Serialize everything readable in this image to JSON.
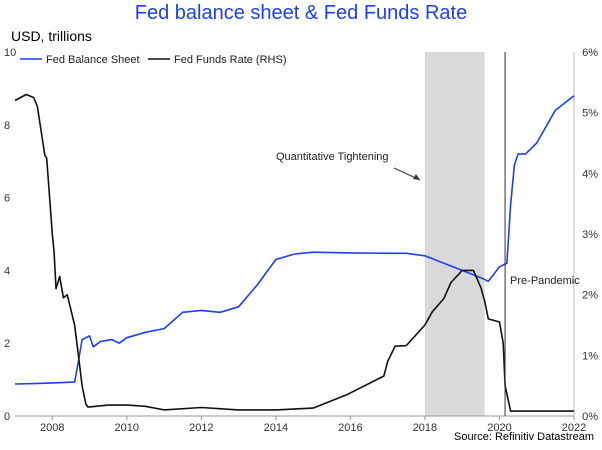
{
  "title": "Fed balance sheet & Fed Funds Rate",
  "ylabel": "USD, trillions",
  "source": "Source: Refinitiv Datastream",
  "colors": {
    "balance": "#1f3ff5",
    "rate": "#111111",
    "band": "#d9d9d9",
    "vline": "#333333"
  },
  "chart_data": {
    "type": "line",
    "title": "Fed balance sheet & Fed Funds Rate",
    "ylabel": "USD, trillions",
    "ylim": [
      0,
      10
    ],
    "y2lim": [
      0,
      6
    ],
    "xlim": [
      2007.0,
      2022.0
    ],
    "y_ticks": [
      "0",
      "2",
      "4",
      "6",
      "8",
      "10"
    ],
    "y2_ticks": [
      "0%",
      "1%",
      "2%",
      "3%",
      "4%",
      "5%",
      "6%"
    ],
    "x_ticks": [
      "2008",
      "2010",
      "2012",
      "2014",
      "2016",
      "2018",
      "2020",
      "2022"
    ],
    "legend": {
      "position": "top-left",
      "entries": [
        "Fed Balance Sheet",
        "Fed Funds Rate (RHS)"
      ]
    },
    "grid": false,
    "shaded_region": {
      "label": "Quantitative Tightening",
      "x": [
        2018.0,
        2019.6
      ]
    },
    "vertical_line": {
      "label": "Pre-Pandemic",
      "x": 2020.15
    },
    "series": [
      {
        "name": "Fed Balance Sheet",
        "axis": "left",
        "x": [
          2007.0,
          2007.5,
          2008.0,
          2008.6,
          2008.7,
          2008.8,
          2009.0,
          2009.1,
          2009.3,
          2009.6,
          2009.8,
          2010.0,
          2010.5,
          2011.0,
          2011.5,
          2012.0,
          2012.5,
          2013.0,
          2013.5,
          2014.0,
          2014.5,
          2015.0,
          2016.0,
          2017.0,
          2017.5,
          2018.0,
          2018.5,
          2019.0,
          2019.5,
          2019.7,
          2020.0,
          2020.2,
          2020.3,
          2020.4,
          2020.5,
          2020.7,
          2021.0,
          2021.5,
          2022.0
        ],
        "values": [
          0.88,
          0.89,
          0.91,
          0.93,
          1.5,
          2.1,
          2.2,
          1.9,
          2.05,
          2.1,
          2.0,
          2.15,
          2.3,
          2.4,
          2.85,
          2.9,
          2.85,
          3.0,
          3.6,
          4.3,
          4.45,
          4.5,
          4.48,
          4.47,
          4.47,
          4.4,
          4.2,
          4.0,
          3.8,
          3.7,
          4.1,
          4.2,
          5.8,
          6.9,
          7.2,
          7.2,
          7.5,
          8.4,
          8.8
        ]
      },
      {
        "name": "Fed Funds Rate (RHS)",
        "axis": "right",
        "x": [
          2007.0,
          2007.3,
          2007.5,
          2007.6,
          2007.8,
          2007.85,
          2008.0,
          2008.05,
          2008.1,
          2008.2,
          2008.3,
          2008.4,
          2008.6,
          2008.7,
          2008.8,
          2008.9,
          2008.95,
          2009.0,
          2009.5,
          2010.0,
          2010.5,
          2011.0,
          2012.0,
          2013.0,
          2014.0,
          2015.0,
          2015.9,
          2016.0,
          2016.9,
          2017.0,
          2017.2,
          2017.5,
          2018.0,
          2018.2,
          2018.5,
          2018.7,
          2019.0,
          2019.3,
          2019.5,
          2019.6,
          2019.7,
          2020.0,
          2020.1,
          2020.15,
          2020.3,
          2021.0,
          2021.5,
          2022.0
        ],
        "values": [
          5.2,
          5.3,
          5.25,
          5.1,
          4.3,
          4.25,
          3.0,
          2.7,
          2.1,
          2.3,
          1.95,
          2.0,
          1.5,
          1.0,
          0.5,
          0.2,
          0.15,
          0.15,
          0.18,
          0.18,
          0.16,
          0.1,
          0.14,
          0.1,
          0.1,
          0.13,
          0.35,
          0.38,
          0.66,
          0.9,
          1.15,
          1.16,
          1.5,
          1.72,
          1.93,
          2.2,
          2.4,
          2.4,
          2.12,
          1.9,
          1.6,
          1.55,
          1.2,
          0.5,
          0.08,
          0.08,
          0.08,
          0.08
        ]
      }
    ]
  }
}
